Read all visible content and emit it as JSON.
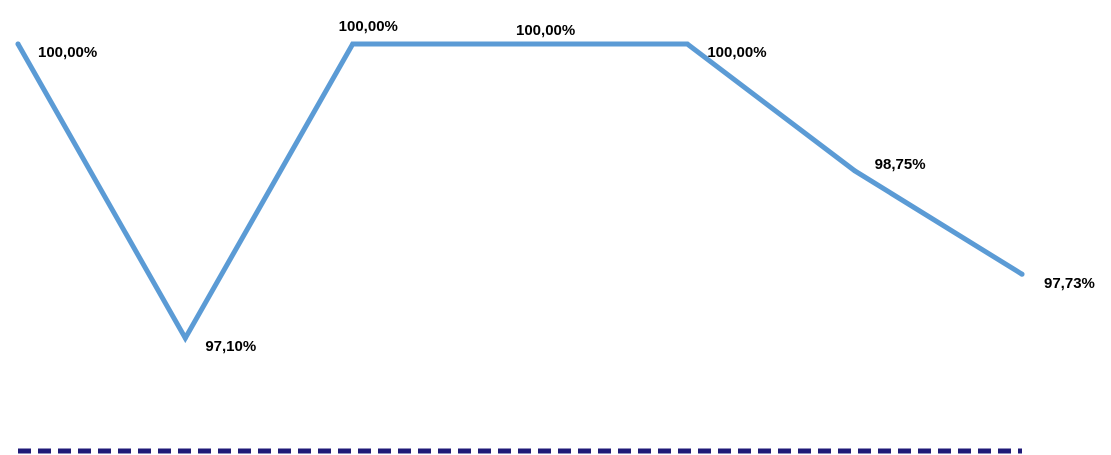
{
  "chart_data": {
    "type": "line",
    "categories": [
      "",
      "",
      "",
      "",
      "",
      "",
      ""
    ],
    "series": [
      {
        "values": [
          100.0,
          97.1,
          100.0,
          100.0,
          100.0,
          98.75,
          97.73
        ],
        "labels": [
          "100,00%",
          "97,10%",
          "100,00%",
          "100,00%",
          "100,00%",
          "98,75%",
          "97,73%"
        ],
        "color": "#5b9bd5"
      }
    ],
    "reference_line": {
      "style": "dashed",
      "color": "#1f1a78"
    },
    "title": "",
    "xlabel": "",
    "ylabel": "",
    "grid": false,
    "legend": "none"
  }
}
